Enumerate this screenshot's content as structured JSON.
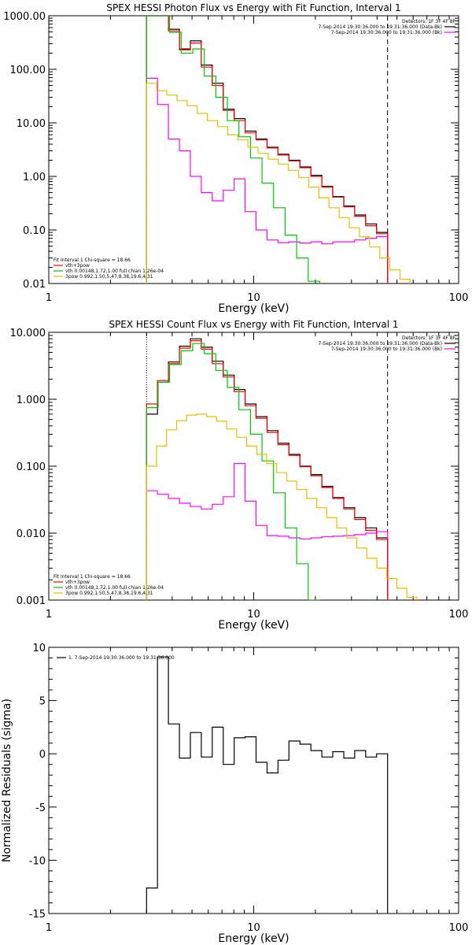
{
  "chart_data": [
    {
      "type": "line",
      "title": "SPEX HESSI Photon Flux vs Energy with Fit Function, Interval 1",
      "xlabel": "Energy (keV)",
      "ylabel": "",
      "xscale": "log",
      "yscale": "log",
      "xlim": [
        1,
        100
      ],
      "ylim": [
        0.01,
        1000
      ],
      "xticks": [
        "1",
        "10",
        "100"
      ],
      "yticks": [
        "0.01",
        "0.10",
        "1.00",
        "10.00",
        "100.00",
        "1000.00"
      ],
      "vlines": [
        {
          "x": 3.0,
          "style": "dotted",
          "color": "#000000"
        },
        {
          "x": 45.0,
          "style": "dashed",
          "color": "#000000"
        }
      ],
      "legend_top": {
        "header": "Detectors: 1F 3F 4F 8F",
        "entries": [
          {
            "label": "7-Sep-2014 19:30:36.000 to 19:31:36.000 (Data-Bk)",
            "color": "#000000"
          },
          {
            "label": "7-Sep-2014 19:30:36.000 to 19:31:36.000 (Bk)",
            "color": "#ff00ff"
          }
        ]
      },
      "legend_bottom": {
        "header": "Fit Interval 1    Chi-square = 18.66",
        "entries": [
          {
            "label": "vth+3pow",
            "color": "#ff0000"
          },
          {
            "label": "vth 0.00148,1.72,1.00  full chian 1.26e-04",
            "color": "#00c800"
          },
          {
            "label": "3pow 0.992,1.50,5.47,8.38,19.6,4.31",
            "color": "#e6c000"
          }
        ]
      },
      "series": [
        {
          "name": "Data-Bk",
          "color": "#000000",
          "x_start": 3.0,
          "x_end": 45.0,
          "values": [
            1000,
            1000,
            560,
            240,
            340,
            120,
            55,
            18,
            12,
            7,
            5,
            3.5,
            2.6,
            2.0,
            1.5,
            1.05,
            0.65,
            0.42,
            0.28,
            0.19,
            0.13,
            0.09
          ]
        },
        {
          "name": "Bk",
          "color": "#ff00ff",
          "x_start": 3.0,
          "x_end": 45.0,
          "values": [
            68,
            22,
            5.0,
            3.0,
            1.0,
            0.5,
            0.35,
            0.55,
            0.9,
            0.22,
            0.1,
            0.065,
            0.058,
            0.06,
            0.057,
            0.06,
            0.055,
            0.06,
            0.06,
            0.065,
            0.07,
            0.075
          ]
        },
        {
          "name": "vth+3pow",
          "color": "#ff0000",
          "x_start": 3.0,
          "x_end": 45.0,
          "values": [
            1000,
            1000,
            520,
            230,
            310,
            110,
            50,
            17,
            11,
            6.5,
            4.8,
            3.4,
            2.5,
            1.95,
            1.45,
            1.0,
            0.63,
            0.41,
            0.27,
            0.18,
            0.12,
            0.085
          ]
        },
        {
          "name": "vth",
          "color": "#00c800",
          "x_start": 3.0,
          "x_end": 21.0,
          "values": [
            1000,
            1000,
            490,
            200,
            240,
            75,
            30,
            11,
            5.5,
            2.2,
            0.75,
            0.26,
            0.08,
            0.03,
            0.011
          ]
        },
        {
          "name": "3pow",
          "color": "#e6c000",
          "x_start": 3.0,
          "x_end": 58.0,
          "values": [
            55,
            40,
            33,
            26,
            21,
            15,
            11,
            8.5,
            6.0,
            4.8,
            3.5,
            2.7,
            2.1,
            1.7,
            1.3,
            0.95,
            0.63,
            0.4,
            0.26,
            0.17,
            0.11,
            0.075,
            0.048,
            0.03,
            0.018,
            0.012
          ]
        }
      ]
    },
    {
      "type": "line",
      "title": "SPEX HESSI Count Flux vs Energy with Fit Function, Interval 1",
      "xlabel": "Energy (keV)",
      "ylabel": "",
      "xscale": "log",
      "yscale": "log",
      "xlim": [
        1,
        100
      ],
      "ylim": [
        0.001,
        10
      ],
      "xticks": [
        "1",
        "10",
        "100"
      ],
      "yticks": [
        "0.001",
        "0.010",
        "0.100",
        "1.000",
        "10.000"
      ],
      "vlines": [
        {
          "x": 3.0,
          "style": "dotted",
          "color": "#000000"
        },
        {
          "x": 45.0,
          "style": "dashed",
          "color": "#000000"
        }
      ],
      "legend_top": {
        "header": "Detectors: 1F 3F 4F 8F",
        "entries": [
          {
            "label": "7-Sep-2014 19:30:36.000 to 19:31:36.000 (Data-Bk)",
            "color": "#000000"
          },
          {
            "label": "7-Sep-2014 19:30:36.000 to 19:31:36.000 (Bk)",
            "color": "#ff00ff"
          }
        ]
      },
      "legend_bottom": {
        "header": "Fit Interval 1    Chi-square = 18.66",
        "entries": [
          {
            "label": "vth+3pow",
            "color": "#ff0000"
          },
          {
            "label": "vth 0.00148,1.72,1.00  full chian 1.26e-04",
            "color": "#00c800"
          },
          {
            "label": "3pow 0.992,1.50,5.47,8.38,19.6,4.31",
            "color": "#e6c000"
          }
        ]
      },
      "series": [
        {
          "name": "Data-Bk",
          "color": "#000000",
          "x_start": 3.0,
          "x_end": 45.0,
          "values": [
            0.6,
            1.8,
            3.6,
            6.2,
            8.0,
            6.0,
            3.7,
            2.3,
            1.4,
            0.85,
            0.55,
            0.34,
            0.22,
            0.15,
            0.1,
            0.075,
            0.05,
            0.034,
            0.024,
            0.017,
            0.012,
            0.0085
          ]
        },
        {
          "name": "Bk",
          "color": "#ff00ff",
          "x_start": 3.0,
          "x_end": 45.0,
          "values": [
            0.043,
            0.038,
            0.033,
            0.028,
            0.025,
            0.023,
            0.027,
            0.035,
            0.11,
            0.03,
            0.013,
            0.0092,
            0.009,
            0.0085,
            0.0082,
            0.0085,
            0.0088,
            0.009,
            0.0092,
            0.0095,
            0.01,
            0.0105
          ]
        },
        {
          "name": "vth+3pow",
          "color": "#ff0000",
          "x_start": 3.0,
          "x_end": 45.0,
          "values": [
            0.85,
            1.9,
            3.4,
            5.8,
            7.5,
            5.6,
            3.4,
            2.15,
            1.3,
            0.8,
            0.52,
            0.32,
            0.21,
            0.145,
            0.098,
            0.072,
            0.048,
            0.033,
            0.023,
            0.016,
            0.011,
            0.008
          ]
        },
        {
          "name": "vth",
          "color": "#00c800",
          "x_start": 3.0,
          "x_end": 21.0,
          "values": [
            0.75,
            1.8,
            3.3,
            5.3,
            6.8,
            4.8,
            2.7,
            1.5,
            0.7,
            0.3,
            0.12,
            0.04,
            0.012,
            0.0035,
            0.001
          ]
        },
        {
          "name": "3pow",
          "color": "#e6c000",
          "x_start": 3.0,
          "x_end": 70.0,
          "values": [
            0.1,
            0.2,
            0.35,
            0.48,
            0.58,
            0.6,
            0.55,
            0.47,
            0.36,
            0.27,
            0.2,
            0.15,
            0.11,
            0.08,
            0.06,
            0.045,
            0.033,
            0.024,
            0.017,
            0.012,
            0.0085,
            0.006,
            0.0042,
            0.003,
            0.0021,
            0.0015,
            0.0011,
            0.0008
          ]
        }
      ]
    },
    {
      "type": "line",
      "title": "",
      "xlabel": "Energy (keV)",
      "ylabel": "Normalized Residuals (sigma)",
      "xscale": "log",
      "yscale": "linear",
      "xlim": [
        1,
        100
      ],
      "ylim": [
        -15,
        10
      ],
      "xticks": [
        "1",
        "10",
        "100"
      ],
      "yticks": [
        "-15",
        "-10",
        "-5",
        "0",
        "5",
        "10"
      ],
      "legend": {
        "entries": [
          {
            "label": "1.  7-Sep-2014 19:30:36.000 to 19:31:36.000",
            "color": "#000000"
          }
        ]
      },
      "series": [
        {
          "name": "residuals",
          "color": "#000000",
          "x_start": 3.0,
          "x_end": 45.0,
          "values": [
            -12.6,
            9.1,
            2.8,
            -0.4,
            2.0,
            -0.3,
            2.5,
            -1.0,
            1.5,
            1.6,
            -0.8,
            -1.8,
            -0.6,
            1.2,
            0.9,
            0.3,
            -0.3,
            0.2,
            -0.4,
            0.3,
            -0.3,
            0.0
          ],
          "drop_to": -15.5
        }
      ]
    }
  ]
}
